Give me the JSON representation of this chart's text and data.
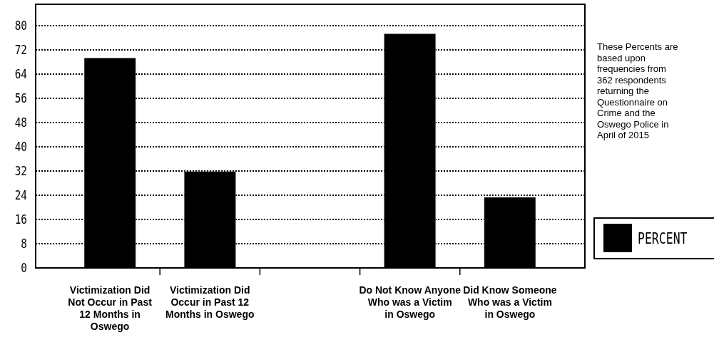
{
  "chart_data": {
    "type": "bar",
    "categories": [
      "Victimization Did Not Occur in Past 12 Months in Oswego",
      "Victimization Did Occur in Past 12 Months in Oswego",
      null,
      "Do Not Know Anyone Who was a Victim in Oswego",
      "Did Know Someone Who was a Victim in Oswego"
    ],
    "series": [
      {
        "name": "PERCENT",
        "color": "#000000",
        "values": [
          69.3,
          31.8,
          null,
          77.3,
          23.3
        ]
      }
    ],
    "ylim": [
      0,
      80
    ],
    "yticks": [
      0,
      8,
      16,
      24,
      32,
      40,
      48,
      56,
      64,
      72,
      80
    ],
    "grid": "y",
    "legend": "right",
    "annotations": [
      "These Percents are based upon frequencies from 362 respondents returning the Questionnaire on Crime and the Oswego Police in April of 2015"
    ]
  }
}
